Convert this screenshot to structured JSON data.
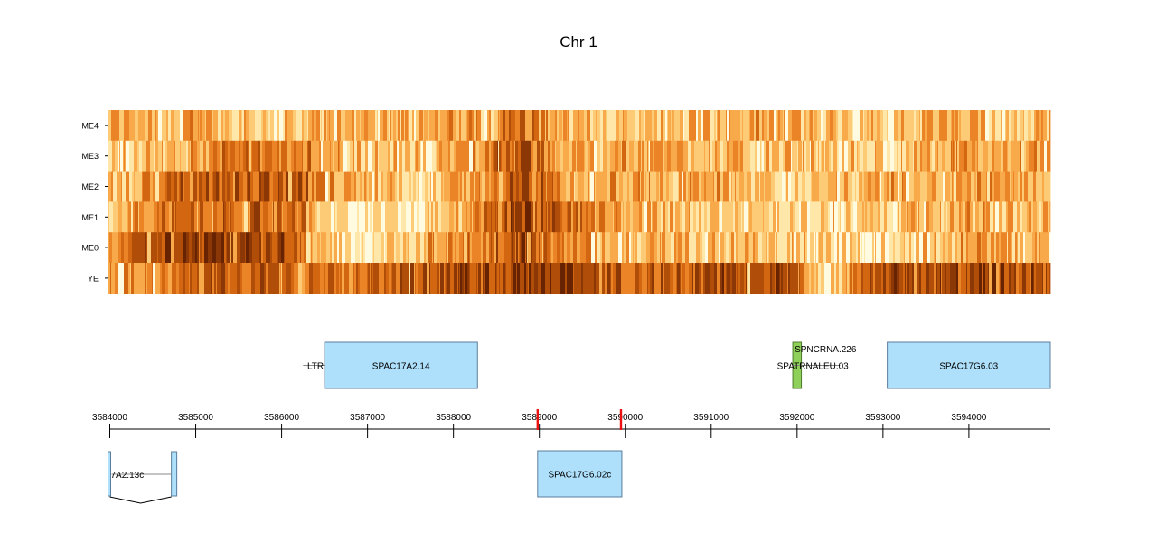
{
  "chart_data": {
    "type": "heatmap",
    "title": "Chr 1",
    "rows": [
      "ME4",
      "ME3",
      "ME2",
      "ME1",
      "ME0",
      "YE"
    ],
    "xlim": [
      3584000,
      3594950
    ],
    "tick_values": [
      3584000,
      3585000,
      3586000,
      3587000,
      3588000,
      3589000,
      3590000,
      3591000,
      3592000,
      3593000,
      3594000
    ],
    "tick_labels": [
      "3584000",
      "3585000",
      "3586000",
      "3587000",
      "3588000",
      "3589000",
      "3590000",
      "3591000",
      "3592000",
      "3593000",
      "3594000"
    ],
    "palette": [
      "#fffbe0",
      "#fee7a8",
      "#fdcb76",
      "#f8a94a",
      "#ea8427",
      "#d26611",
      "#b04d08",
      "#8c3806",
      "#682303"
    ],
    "track_profiles": {
      "ME4": [
        [
          0,
          3
        ],
        [
          8,
          3
        ],
        [
          18,
          2
        ],
        [
          28,
          3
        ],
        [
          38,
          3
        ],
        [
          44,
          5
        ],
        [
          47,
          3
        ],
        [
          56,
          2
        ],
        [
          62,
          3
        ],
        [
          70,
          3
        ],
        [
          80,
          2
        ],
        [
          88,
          3
        ],
        [
          94,
          2
        ],
        [
          100,
          3
        ]
      ],
      "ME3": [
        [
          0,
          2
        ],
        [
          10,
          3
        ],
        [
          12,
          5
        ],
        [
          14,
          4
        ],
        [
          22,
          4
        ],
        [
          28,
          2
        ],
        [
          34,
          2
        ],
        [
          44,
          6
        ],
        [
          47,
          3
        ],
        [
          56,
          3
        ],
        [
          62,
          3
        ],
        [
          72,
          2
        ],
        [
          80,
          2
        ],
        [
          86,
          3
        ],
        [
          100,
          3
        ]
      ],
      "ME2": [
        [
          0,
          2
        ],
        [
          8,
          5
        ],
        [
          12,
          5
        ],
        [
          20,
          6
        ],
        [
          22,
          4
        ],
        [
          28,
          2
        ],
        [
          38,
          3
        ],
        [
          44,
          6
        ],
        [
          48,
          4
        ],
        [
          56,
          3
        ],
        [
          64,
          3
        ],
        [
          72,
          2
        ],
        [
          80,
          3
        ],
        [
          90,
          3
        ],
        [
          100,
          3
        ]
      ],
      "ME1": [
        [
          0,
          3
        ],
        [
          8,
          5
        ],
        [
          12,
          5
        ],
        [
          20,
          5
        ],
        [
          22,
          2
        ],
        [
          30,
          1
        ],
        [
          38,
          3
        ],
        [
          44,
          7
        ],
        [
          48,
          5
        ],
        [
          56,
          3
        ],
        [
          64,
          2
        ],
        [
          76,
          2
        ],
        [
          84,
          2
        ],
        [
          90,
          3
        ],
        [
          100,
          3
        ]
      ],
      "ME0": [
        [
          0,
          4
        ],
        [
          6,
          7
        ],
        [
          12,
          7
        ],
        [
          20,
          6
        ],
        [
          22,
          2
        ],
        [
          28,
          1
        ],
        [
          34,
          3
        ],
        [
          44,
          6
        ],
        [
          48,
          4
        ],
        [
          56,
          3
        ],
        [
          62,
          2
        ],
        [
          76,
          2
        ],
        [
          82,
          1
        ],
        [
          86,
          3
        ],
        [
          100,
          3
        ]
      ],
      "YE": [
        [
          0,
          3
        ],
        [
          8,
          5
        ],
        [
          20,
          5
        ],
        [
          28,
          5
        ],
        [
          36,
          6
        ],
        [
          44,
          7
        ],
        [
          47,
          7
        ],
        [
          56,
          5
        ],
        [
          66,
          6
        ],
        [
          72,
          6
        ],
        [
          74,
          4
        ],
        [
          76,
          1
        ],
        [
          82,
          6
        ],
        [
          100,
          6
        ]
      ]
    },
    "genes_top": [
      {
        "name": "SPAC17A2.14",
        "start": 3586500,
        "end": 3588280,
        "type": "gene"
      },
      {
        "name": "SPAC17G6.03",
        "start": 3593050,
        "end": 3594950,
        "type": "gene"
      },
      {
        "name": "SPNCRNA.226",
        "start": 3591950,
        "end": 3592050,
        "type": "ncRNA"
      }
    ],
    "features_top": [
      {
        "name": "LTR",
        "start": 3586250,
        "end": 3586500
      },
      {
        "name": "SPATRNALEU.03",
        "start": 3591950,
        "end": 3592500
      }
    ],
    "genes_bottom": [
      {
        "name": "SPAC17G6.02c",
        "start": 3588980,
        "end": 3589960,
        "type": "gene"
      },
      {
        "name": "7A2.13c",
        "start": 3584000,
        "end": 3584780,
        "type": "spliced"
      }
    ],
    "red_marks": [
      3588980,
      3589950
    ]
  },
  "colors": {
    "gene_fill": "#aee0fb",
    "gene_stroke": "#5b7c9c",
    "ncrna_fill": "#8fd05a",
    "ncrna_stroke": "#4f7a2b",
    "mark": "#ee1111"
  }
}
